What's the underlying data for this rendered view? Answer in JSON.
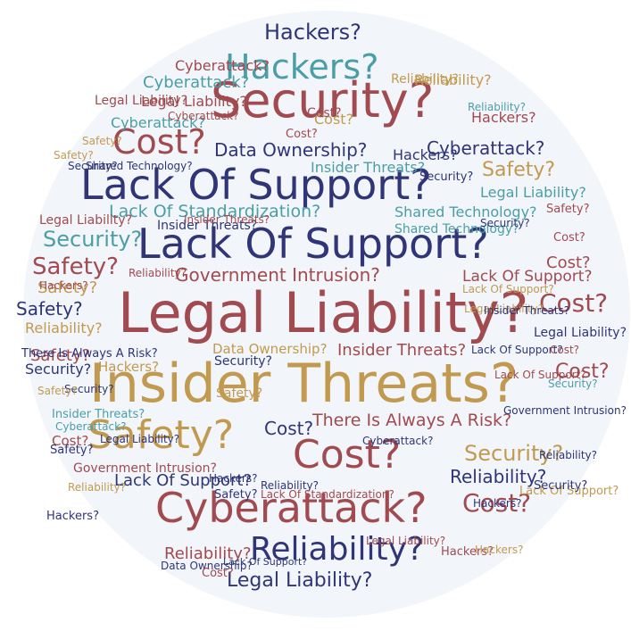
{
  "palette": {
    "red": "#a14a4f",
    "navy": "#2f3577",
    "teal": "#4b9ea6",
    "gold": "#c29a4f",
    "disc_background": "#f2f6fa"
  },
  "cloud": {
    "w1": "Security?",
    "w2": "Hackers?",
    "w3": "Hackers?",
    "w4": "Cost?",
    "w5": "Lack Of Support?",
    "w6": "Lack Of Support?",
    "w7": "Legal Liability?",
    "w8": "Insider Threats?",
    "w9": "Safety?",
    "w10": "Cost?",
    "w11": "Cyberattack?",
    "w12": "Reliability?",
    "w13": "Legal Liability?",
    "w14": "Data Ownership?",
    "w15": "Lack Of Standardization?",
    "w16": "Insider Threats?",
    "w17": "Shared Technology?",
    "w18": "Legal Liability?",
    "w19": "Government Intrusion?",
    "w20": "There Is Always A Risk?",
    "w21": "Cyberattack?",
    "w22": "Cyberattack?",
    "w23": "Legal Liability?",
    "w24": "Hackers?",
    "w25": "Cyberattack?",
    "w26": "Reliability?",
    "w27": "Safety?",
    "w28": "Security?",
    "w29": "Safety?",
    "w30": "Cost?",
    "w31": "Safety?",
    "w32": "Cost?",
    "w33": "Lack Of Support?",
    "w34": "Insider Threats?",
    "w35": "Security?",
    "w36": "Cost?",
    "w37": "Cost?",
    "w38": "Data Ownership?",
    "w39": "Reliability?",
    "w40": "Security?",
    "w41": "Hackers?",
    "w42": "Safety?",
    "w43": "Lack Of Support?",
    "w44": "There Is Always A Risk?",
    "w45": "Safety?",
    "w46": "Cost?",
    "w47": "Cost?",
    "w48": "Hackers?",
    "w49": "Reliability?",
    "w50": "Safety?",
    "w51": "Government Intrusion?",
    "w52": "Reliability?",
    "w53": "Cost?",
    "w54": "Lack Of Support?",
    "w55": "Security?",
    "w56": "Legal Liability?",
    "w57": "Legal Liability?",
    "w58": "Hackers?",
    "w59": "Hackers?",
    "w60": "Cyberattack?",
    "w61": "Security?",
    "w62": "Insider Threats?",
    "w63": "Shared Technology?",
    "w64": "Safety?",
    "w65": "Reliability?",
    "w66": "Cyberattack?",
    "w67": "Cyberattack?",
    "w68": "Reliability?",
    "w69": "Security?",
    "w70": "Insider Threats?",
    "w71": "Government Intrusion?",
    "w72": "Reliability?",
    "w73": "Lack Of Support?",
    "w74": "Safety?",
    "w75": "Hackers?",
    "w76": "Legal Liability?",
    "w77": "Lack Of Standardization?",
    "w78": "Data Ownership?",
    "w79": "Cost?",
    "w80": "Security?",
    "w81": "Cost?",
    "w82": "Hackers?",
    "w83": "Reliability?",
    "w84": "Cost?",
    "w85": "Legal Liability?",
    "w86": "Shared Technology?",
    "w87": "Safety?",
    "w88": "Safety?",
    "w89": "Cost?",
    "w90": "Hackers?",
    "w91": "Security?",
    "w92": "Legal Liability?",
    "w93": "Insider Threats?",
    "w94": "Legal Liability?",
    "w95": "Cyberattack?",
    "w96": "Insider Threats?",
    "w97": "Lack Of Support?",
    "w98": "Security?",
    "w99": "Safety?",
    "w100": "Lack Of Support?",
    "w101": "Cost?",
    "w102": "Hackers?",
    "w103": "Lack Of Support?",
    "w104": "Security?",
    "w105": "Safety?",
    "w106": "Reliability?",
    "w107": "Reliability?"
  }
}
